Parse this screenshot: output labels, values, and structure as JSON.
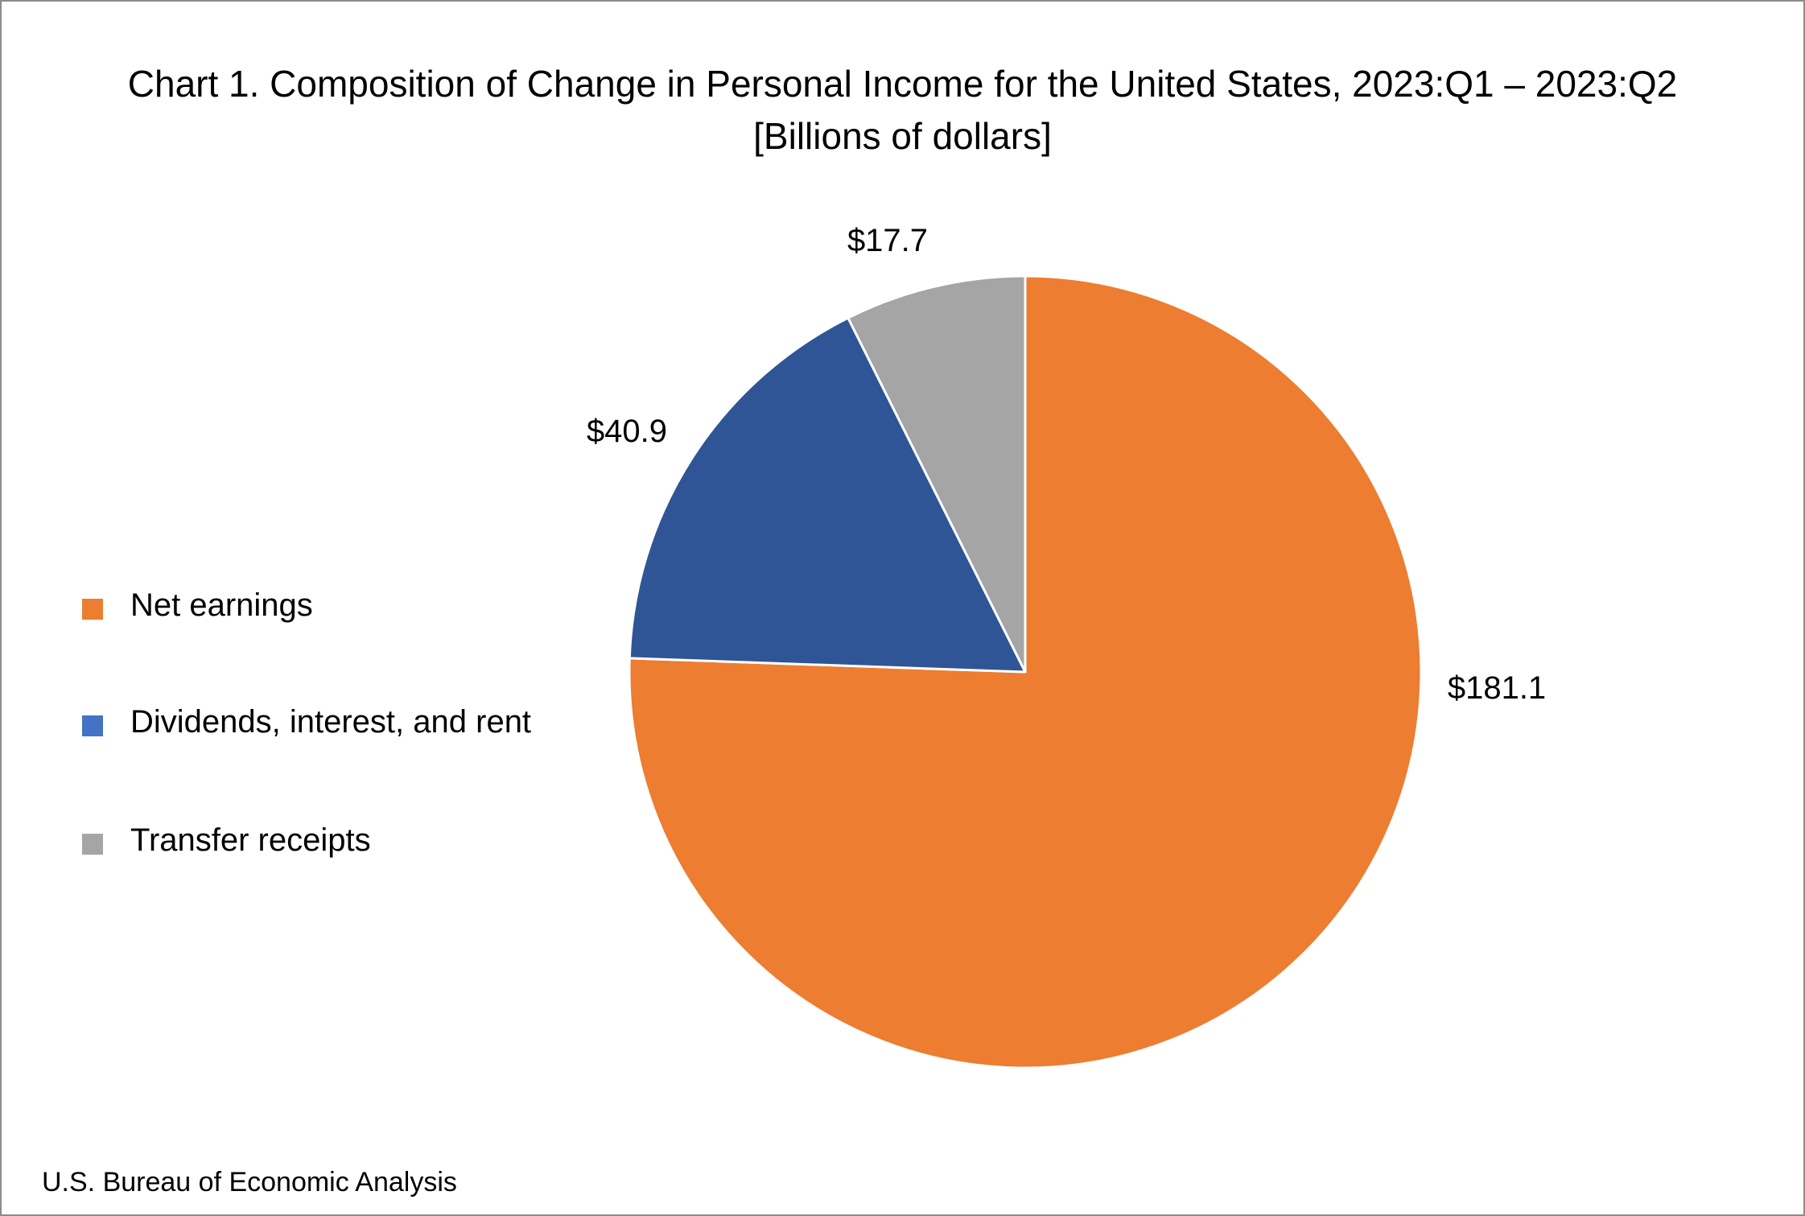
{
  "chart_data": {
    "type": "pie",
    "title": "Chart 1. Composition of Change in Personal Income for the United States, 2023:Q1 – 2023:Q2",
    "subtitle": "[Billions of dollars]",
    "legend_position": "left",
    "start_angle_deg": 0,
    "direction": "clockwise",
    "slices": [
      {
        "label": "Net earnings",
        "value": 181.1,
        "data_label": "$181.1",
        "color": "#ED7D31"
      },
      {
        "label": "Dividends, interest, and rent",
        "value": 40.9,
        "data_label": "$40.9",
        "color": "#2F5597"
      },
      {
        "label": "Transfer receipts",
        "value": 17.7,
        "data_label": "$17.7",
        "color": "#A5A5A5"
      }
    ],
    "legend_swatch_colors": [
      "#ED7D31",
      "#4472C4",
      "#A5A5A5"
    ]
  },
  "footer": {
    "source": "U.S. Bureau of Economic Analysis"
  }
}
